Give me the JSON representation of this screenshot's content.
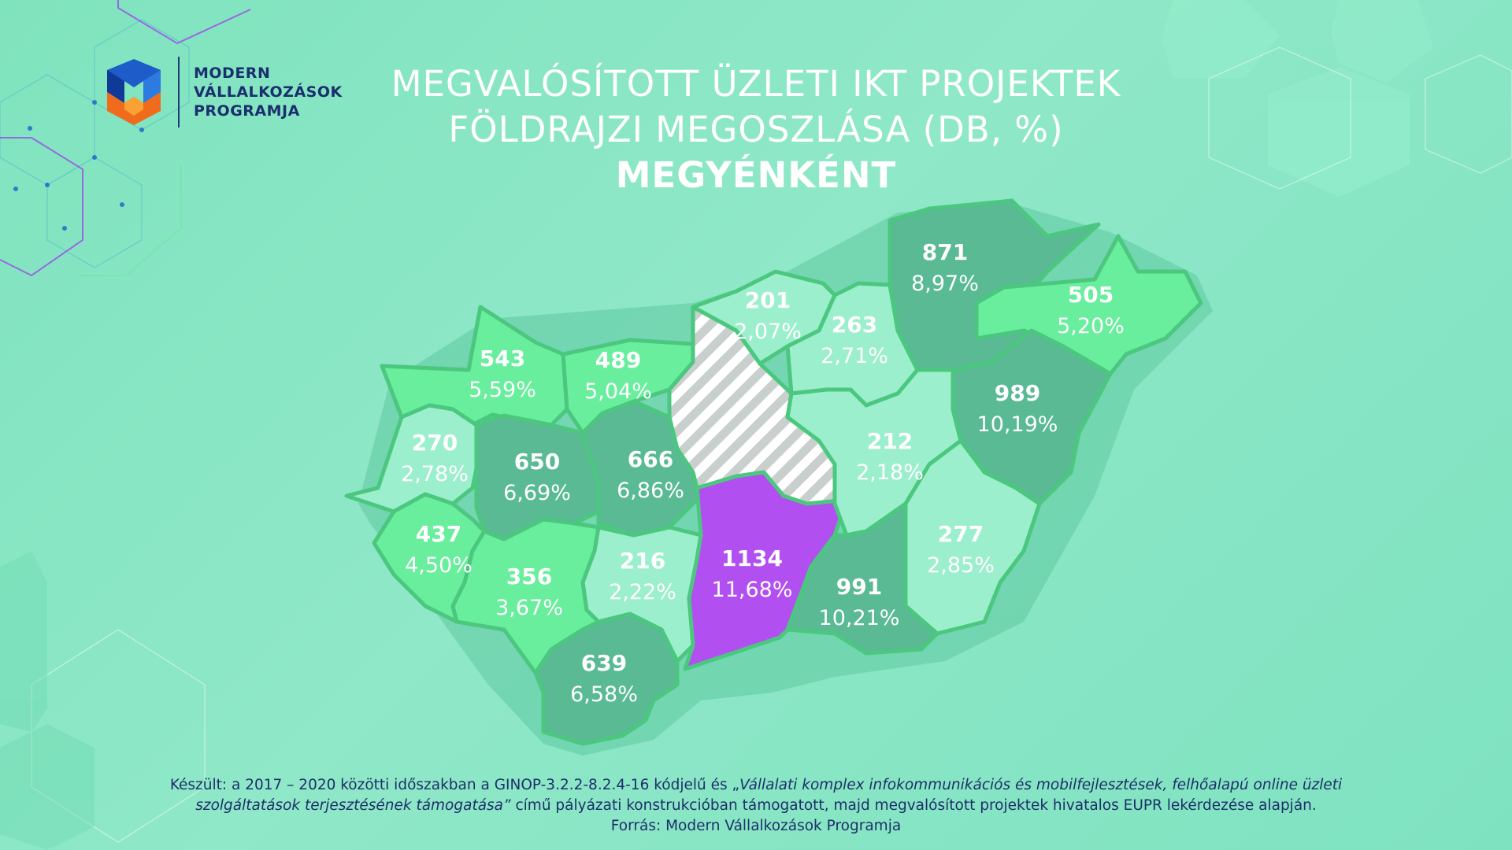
{
  "logo": {
    "line1": "MODERN",
    "line2": "VÁLLALKOZÁSOK",
    "line3": "PROGRAMJA"
  },
  "title": {
    "line1": "MEGVALÓSÍTOTT ÜZLETI IKT PROJEKTEK",
    "line2": "FÖLDRAJZI MEGOSZLÁSA (DB, %)",
    "line3": "MEGYÉNKÉNT"
  },
  "colors": {
    "background": "#86e5c4",
    "light": "#9cefcc",
    "medium": "#68ee9c",
    "dark": "#59ba94",
    "highlight": "#b24ff0",
    "border": "#4cc77f",
    "hatch": "#c9cfcc",
    "text_dark": "#1d2f6a"
  },
  "counties": [
    {
      "id": "gyor",
      "count": "543",
      "pct": "5,59%",
      "shade": "medium"
    },
    {
      "id": "komarom",
      "count": "489",
      "pct": "5,04%",
      "shade": "medium"
    },
    {
      "id": "vas",
      "count": "270",
      "pct": "2,78%",
      "shade": "light"
    },
    {
      "id": "veszprem",
      "count": "650",
      "pct": "6,69%",
      "shade": "dark"
    },
    {
      "id": "fejer",
      "count": "666",
      "pct": "6,86%",
      "shade": "dark"
    },
    {
      "id": "zala",
      "count": "437",
      "pct": "4,50%",
      "shade": "medium"
    },
    {
      "id": "somogy",
      "count": "356",
      "pct": "3,67%",
      "shade": "medium"
    },
    {
      "id": "tolna",
      "count": "216",
      "pct": "2,22%",
      "shade": "light"
    },
    {
      "id": "baranya",
      "count": "639",
      "pct": "6,58%",
      "shade": "dark"
    },
    {
      "id": "bacs",
      "count": "1134",
      "pct": "11,68%",
      "shade": "highlight"
    },
    {
      "id": "nograd",
      "count": "201",
      "pct": "2,07%",
      "shade": "light"
    },
    {
      "id": "heves",
      "count": "263",
      "pct": "2,71%",
      "shade": "light"
    },
    {
      "id": "borsod",
      "count": "871",
      "pct": "8,97%",
      "shade": "dark"
    },
    {
      "id": "szabolcs",
      "count": "505",
      "pct": "5,20%",
      "shade": "medium"
    },
    {
      "id": "jasz",
      "count": "212",
      "pct": "2,18%",
      "shade": "light"
    },
    {
      "id": "hajdu",
      "count": "989",
      "pct": "10,19%",
      "shade": "dark"
    },
    {
      "id": "bekes",
      "count": "277",
      "pct": "2,85%",
      "shade": "light"
    },
    {
      "id": "csongrad",
      "count": "991",
      "pct": "10,21%",
      "shade": "dark"
    },
    {
      "id": "pest",
      "count": "",
      "pct": "",
      "shade": "hatched"
    }
  ],
  "footer": {
    "line1_prefix": "Készült: a 2017 – 2020 közötti időszakban a GINOP-3.2.2-8.2.4-16 kódjelű és „",
    "line1_italic": "Vállalati komplex infokommunikációs és mobilfejlesztések, felhőalapú online üzleti",
    "line2_italic": "szolgáltatások terjesztésének támogatása”",
    "line2_suffix": " című pályázati konstrukcióban támogatott, majd megvalósított projektek hivatalos EUPR lekérdezése alapján.",
    "line3": "Forrás: Modern Vállalkozások Programja"
  }
}
